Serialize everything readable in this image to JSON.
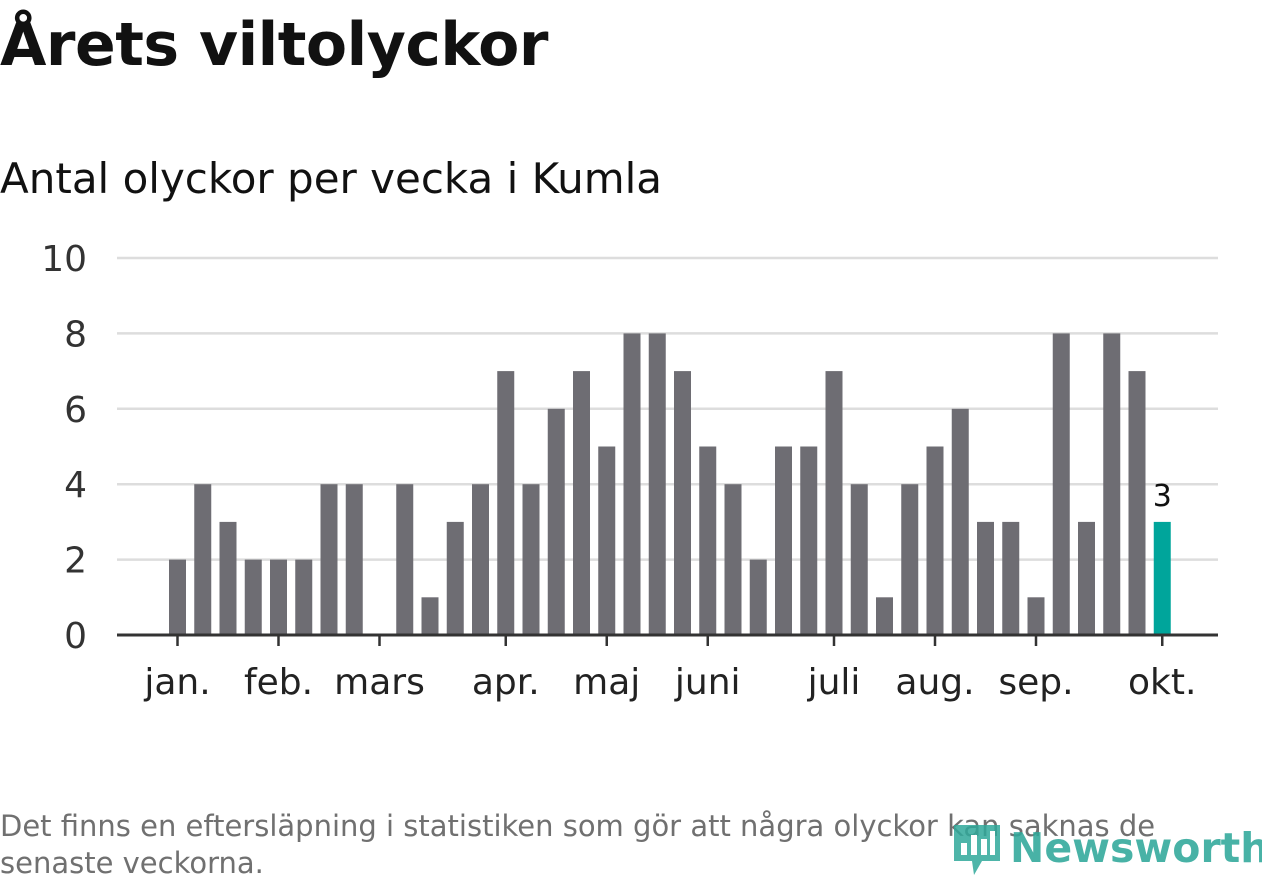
{
  "title": "Årets viltolyckor",
  "footnote": "Det finns en eftersläpning i statistiken som gör att några olyckor kan saknas de senaste veckorna.",
  "logo": {
    "text": "Newsworthy",
    "icon": "newsworthy-logo-icon",
    "color": "#2fa89a"
  },
  "chart_data": {
    "type": "bar",
    "title": "Antal olyckor per vecka i Kumla",
    "xlabel": "",
    "ylabel": "",
    "ylim": [
      0,
      10
    ],
    "yticks": [
      0,
      2,
      4,
      6,
      8,
      10
    ],
    "grid": true,
    "weeks": [
      1,
      2,
      3,
      4,
      5,
      6,
      7,
      8,
      9,
      10,
      11,
      12,
      13,
      14,
      15,
      16,
      17,
      18,
      19,
      20,
      21,
      22,
      23,
      24,
      25,
      26,
      27,
      28,
      29,
      30,
      31,
      32,
      33,
      34,
      35,
      36,
      37,
      38,
      39,
      40
    ],
    "values": [
      2,
      4,
      3,
      2,
      2,
      2,
      4,
      4,
      0,
      4,
      1,
      3,
      4,
      7,
      4,
      6,
      7,
      5,
      8,
      8,
      7,
      5,
      4,
      2,
      5,
      5,
      7,
      4,
      1,
      4,
      5,
      6,
      3,
      3,
      1,
      8,
      3,
      8,
      7,
      3
    ],
    "month_ticks": [
      {
        "label": "jan.",
        "week": 1
      },
      {
        "label": "feb.",
        "week": 5
      },
      {
        "label": "mars",
        "week": 9
      },
      {
        "label": "apr.",
        "week": 14
      },
      {
        "label": "maj",
        "week": 18
      },
      {
        "label": "juni",
        "week": 22
      },
      {
        "label": "juli",
        "week": 27
      },
      {
        "label": "aug.",
        "week": 31
      },
      {
        "label": "sep.",
        "week": 35
      },
      {
        "label": "okt.",
        "week": 40
      }
    ],
    "highlight": {
      "week": 40,
      "value": 3,
      "label": "3"
    },
    "colors": {
      "bar": "#6e6d73",
      "highlight": "#00a59b",
      "grid": "#dddddd",
      "axis": "#333333"
    }
  }
}
